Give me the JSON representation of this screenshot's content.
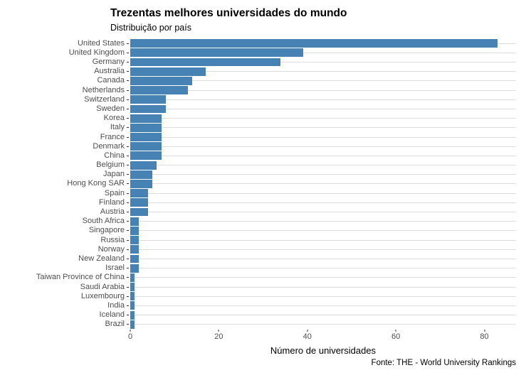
{
  "chart_data": {
    "type": "bar",
    "orientation": "horizontal",
    "title": "Trezentas melhores universidades do mundo",
    "subtitle": "Distribuição por país",
    "xlabel": "Número de universidades",
    "caption": "Fonte: THE - World University Rankings",
    "categories": [
      "United States",
      "United Kingdom",
      "Germany",
      "Australia",
      "Canada",
      "Netherlands",
      "Switzerland",
      "Sweden",
      "Korea",
      "Italy",
      "France",
      "Denmark",
      "China",
      "Belgium",
      "Japan",
      "Hong Kong SAR",
      "Spain",
      "Finland",
      "Austria",
      "South Africa",
      "Singapore",
      "Russia",
      "Norway",
      "New Zealand",
      "Israel",
      "Taiwan Province of China",
      "Saudi Arabia",
      "Luxembourg",
      "India",
      "Iceland",
      "Brazil"
    ],
    "values": [
      83,
      39,
      34,
      17,
      14,
      13,
      8,
      8,
      7,
      7,
      7,
      7,
      7,
      6,
      5,
      5,
      4,
      4,
      4,
      2,
      2,
      2,
      2,
      2,
      2,
      1,
      1,
      1,
      1,
      1,
      1
    ],
    "x_ticks": [
      0,
      20,
      40,
      60,
      80
    ],
    "xlim": [
      0,
      87.15
    ],
    "bar_color": "#4682b4",
    "gridline_color": "#dddddd",
    "axis_text_color": "#4d4d4d",
    "grid": "horizontal-major-only",
    "legend": "none"
  }
}
